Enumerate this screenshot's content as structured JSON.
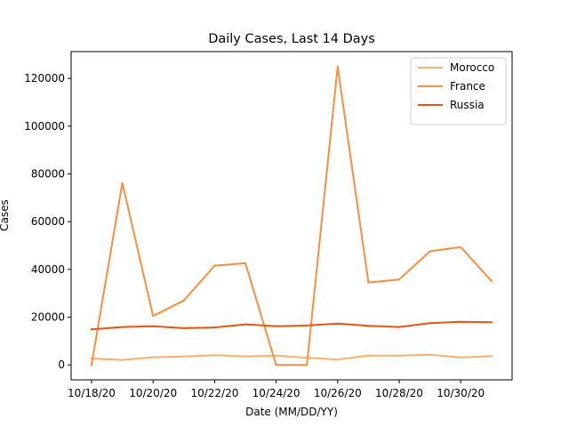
{
  "chart_data": {
    "type": "line",
    "title": "Daily Cases, Last 14 Days",
    "xlabel": "Date (MM/DD/YY)",
    "ylabel": "Cases",
    "x": [
      "10/18/20",
      "10/19/20",
      "10/20/20",
      "10/21/20",
      "10/22/20",
      "10/23/20",
      "10/24/20",
      "10/25/20",
      "10/26/20",
      "10/27/20",
      "10/28/20",
      "10/29/20",
      "10/30/20",
      "10/31/20"
    ],
    "x_ticks": [
      "10/18/20",
      "10/20/20",
      "10/22/20",
      "10/24/20",
      "10/26/20",
      "10/28/20",
      "10/30/20"
    ],
    "y_ticks": [
      0,
      20000,
      40000,
      60000,
      80000,
      100000,
      120000
    ],
    "ylim": [
      -6250,
      131250
    ],
    "grid": false,
    "legend_position": "upper-right",
    "series": [
      {
        "name": "Morocco",
        "color": "#fdae6b",
        "values": [
          2700,
          2100,
          3200,
          3500,
          4100,
          3600,
          3900,
          3000,
          2300,
          3900,
          3900,
          4300,
          3100,
          3700
        ]
      },
      {
        "name": "France",
        "color": "#fd8d3c",
        "values": [
          0,
          76200,
          20500,
          27000,
          41600,
          42600,
          0,
          0,
          125000,
          34500,
          35800,
          47600,
          49400,
          35200
        ]
      },
      {
        "name": "Russia",
        "color": "#e6550d",
        "values": [
          14900,
          15900,
          16200,
          15400,
          15700,
          17000,
          16200,
          16500,
          17300,
          16400,
          15900,
          17500,
          18100,
          17900
        ]
      }
    ]
  }
}
